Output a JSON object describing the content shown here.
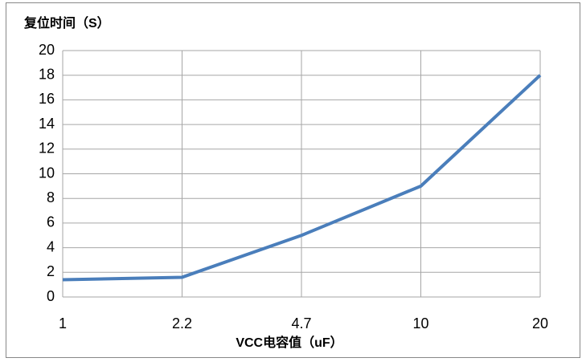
{
  "chart_data": {
    "type": "line",
    "y_label": "复位时间（S）",
    "x_label": "VCC电容值（uF）",
    "categories": [
      "1",
      "2.2",
      "4.7",
      "10",
      "20"
    ],
    "series": [
      {
        "color": "#4a7ebb",
        "values": [
          1.4,
          1.6,
          5,
          9,
          18
        ]
      }
    ],
    "ylim": [
      0,
      20
    ],
    "yticks": [
      0,
      2,
      4,
      6,
      8,
      10,
      12,
      14,
      16,
      18,
      20
    ],
    "grid": true
  }
}
